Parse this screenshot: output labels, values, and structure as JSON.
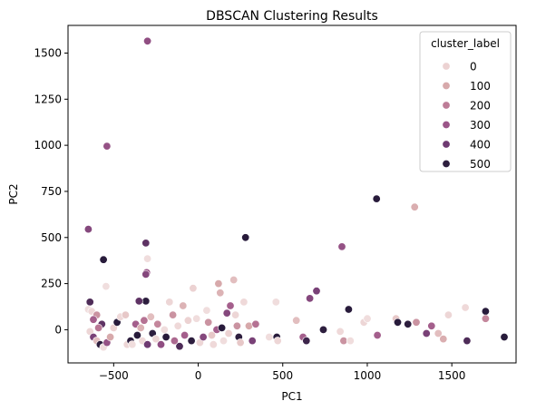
{
  "chart_data": {
    "type": "scatter",
    "title": "DBSCAN Clustering Results",
    "xlabel": "PC1",
    "ylabel": "PC2",
    "xlim": [
      -770,
      1880
    ],
    "ylim": [
      -180,
      1650
    ],
    "xticks": [
      -500,
      0,
      500,
      1000,
      1500
    ],
    "yticks": [
      0,
      250,
      500,
      750,
      1000,
      1250,
      1500
    ],
    "grid": false,
    "legend": {
      "title": "cluster_label",
      "placement": "top-right",
      "entries": [
        {
          "label": "0",
          "color": "#ecd2d2"
        },
        {
          "label": "100",
          "color": "#d7a9ab"
        },
        {
          "label": "200",
          "color": "#bd7c97"
        },
        {
          "label": "300",
          "color": "#9b5588"
        },
        {
          "label": "400",
          "color": "#6e3a71"
        },
        {
          "label": "500",
          "color": "#2d1e3e"
        }
      ]
    },
    "hue_range": [
      0,
      560
    ],
    "color_scale": [
      "#f1e0e0",
      "#ecd2d2",
      "#d7a9ab",
      "#bd7c97",
      "#9b5588",
      "#6e3a71",
      "#2d1e3e",
      "#1a1330"
    ],
    "points": [
      {
        "x": -300,
        "y": 1565,
        "c": 340
      },
      {
        "x": -540,
        "y": 995,
        "c": 330
      },
      {
        "x": -650,
        "y": 545,
        "c": 360
      },
      {
        "x": -560,
        "y": 380,
        "c": 500
      },
      {
        "x": -310,
        "y": 470,
        "c": 420
      },
      {
        "x": -300,
        "y": 385,
        "c": 20
      },
      {
        "x": -305,
        "y": 310,
        "c": 320
      },
      {
        "x": -310,
        "y": 300,
        "c": 360
      },
      {
        "x": -310,
        "y": 155,
        "c": 480
      },
      {
        "x": -350,
        "y": 155,
        "c": 420
      },
      {
        "x": -545,
        "y": 235,
        "c": 10
      },
      {
        "x": -640,
        "y": 150,
        "c": 440
      },
      {
        "x": -650,
        "y": 110,
        "c": 10
      },
      {
        "x": -630,
        "y": 100,
        "c": 40
      },
      {
        "x": -600,
        "y": 80,
        "c": 200
      },
      {
        "x": -620,
        "y": 55,
        "c": 300
      },
      {
        "x": -570,
        "y": 30,
        "c": 420
      },
      {
        "x": -590,
        "y": 10,
        "c": 250
      },
      {
        "x": -640,
        "y": -10,
        "c": 60
      },
      {
        "x": -620,
        "y": -40,
        "c": 380
      },
      {
        "x": -600,
        "y": -60,
        "c": 120
      },
      {
        "x": -580,
        "y": -80,
        "c": 480
      },
      {
        "x": -560,
        "y": -95,
        "c": 20
      },
      {
        "x": -540,
        "y": -70,
        "c": 330
      },
      {
        "x": -520,
        "y": -40,
        "c": 160
      },
      {
        "x": -500,
        "y": 10,
        "c": 80
      },
      {
        "x": -480,
        "y": 40,
        "c": 500
      },
      {
        "x": -460,
        "y": 70,
        "c": 40
      },
      {
        "x": -430,
        "y": 80,
        "c": 100
      },
      {
        "x": -420,
        "y": -80,
        "c": 60
      },
      {
        "x": -400,
        "y": -60,
        "c": 480
      },
      {
        "x": -390,
        "y": -80,
        "c": 20
      },
      {
        "x": -370,
        "y": 30,
        "c": 300
      },
      {
        "x": -360,
        "y": -30,
        "c": 500
      },
      {
        "x": -340,
        "y": 10,
        "c": 140
      },
      {
        "x": -330,
        "y": -60,
        "c": 40
      },
      {
        "x": -320,
        "y": 50,
        "c": 260
      },
      {
        "x": -300,
        "y": -80,
        "c": 400
      },
      {
        "x": -280,
        "y": 70,
        "c": 120
      },
      {
        "x": -270,
        "y": -20,
        "c": 480
      },
      {
        "x": -250,
        "y": -50,
        "c": 60
      },
      {
        "x": -240,
        "y": 30,
        "c": 220
      },
      {
        "x": -220,
        "y": -80,
        "c": 340
      },
      {
        "x": -200,
        "y": 0,
        "c": 20
      },
      {
        "x": -190,
        "y": -40,
        "c": 500
      },
      {
        "x": -170,
        "y": 150,
        "c": 60
      },
      {
        "x": -150,
        "y": 80,
        "c": 200
      },
      {
        "x": -140,
        "y": -60,
        "c": 280
      },
      {
        "x": -120,
        "y": 20,
        "c": 40
      },
      {
        "x": -110,
        "y": -90,
        "c": 440
      },
      {
        "x": -90,
        "y": 130,
        "c": 140
      },
      {
        "x": -80,
        "y": -30,
        "c": 300
      },
      {
        "x": -60,
        "y": 50,
        "c": 80
      },
      {
        "x": -40,
        "y": -60,
        "c": 480
      },
      {
        "x": -30,
        "y": 225,
        "c": 80
      },
      {
        "x": -10,
        "y": 60,
        "c": 20
      },
      {
        "x": 10,
        "y": -70,
        "c": 60
      },
      {
        "x": 30,
        "y": -40,
        "c": 360
      },
      {
        "x": 50,
        "y": 105,
        "c": 20
      },
      {
        "x": 60,
        "y": 40,
        "c": 200
      },
      {
        "x": 80,
        "y": -30,
        "c": 100
      },
      {
        "x": 90,
        "y": -80,
        "c": 40
      },
      {
        "x": 110,
        "y": 0,
        "c": 300
      },
      {
        "x": 120,
        "y": 250,
        "c": 160
      },
      {
        "x": 130,
        "y": 200,
        "c": 140
      },
      {
        "x": 140,
        "y": 10,
        "c": 500
      },
      {
        "x": 150,
        "y": -60,
        "c": 20
      },
      {
        "x": 170,
        "y": 90,
        "c": 360
      },
      {
        "x": 180,
        "y": -20,
        "c": 80
      },
      {
        "x": 190,
        "y": 130,
        "c": 300
      },
      {
        "x": 210,
        "y": 270,
        "c": 120
      },
      {
        "x": 220,
        "y": 80,
        "c": 60
      },
      {
        "x": 230,
        "y": 20,
        "c": 200
      },
      {
        "x": 240,
        "y": -40,
        "c": 480
      },
      {
        "x": 250,
        "y": -70,
        "c": 100
      },
      {
        "x": 270,
        "y": 150,
        "c": 40
      },
      {
        "x": 280,
        "y": 500,
        "c": 500
      },
      {
        "x": 300,
        "y": 20,
        "c": 160
      },
      {
        "x": 320,
        "y": -60,
        "c": 380
      },
      {
        "x": 340,
        "y": 30,
        "c": 260
      },
      {
        "x": 420,
        "y": -40,
        "c": 20
      },
      {
        "x": 460,
        "y": 150,
        "c": 20
      },
      {
        "x": 465,
        "y": -40,
        "c": 500
      },
      {
        "x": 470,
        "y": -60,
        "c": 60
      },
      {
        "x": 580,
        "y": 50,
        "c": 120
      },
      {
        "x": 620,
        "y": -40,
        "c": 300
      },
      {
        "x": 640,
        "y": -60,
        "c": 460
      },
      {
        "x": 660,
        "y": 170,
        "c": 360
      },
      {
        "x": 700,
        "y": 210,
        "c": 380
      },
      {
        "x": 740,
        "y": 0,
        "c": 480
      },
      {
        "x": 850,
        "y": 450,
        "c": 330
      },
      {
        "x": 840,
        "y": -10,
        "c": 40
      },
      {
        "x": 860,
        "y": -60,
        "c": 200
      },
      {
        "x": 890,
        "y": 110,
        "c": 500
      },
      {
        "x": 900,
        "y": -60,
        "c": 20
      },
      {
        "x": 980,
        "y": 40,
        "c": 60
      },
      {
        "x": 1000,
        "y": 60,
        "c": 20
      },
      {
        "x": 1055,
        "y": 710,
        "c": 500
      },
      {
        "x": 1060,
        "y": -30,
        "c": 300
      },
      {
        "x": 1170,
        "y": 60,
        "c": 100
      },
      {
        "x": 1180,
        "y": 40,
        "c": 500
      },
      {
        "x": 1240,
        "y": 30,
        "c": 480
      },
      {
        "x": 1280,
        "y": 665,
        "c": 150
      },
      {
        "x": 1290,
        "y": 40,
        "c": 200
      },
      {
        "x": 1350,
        "y": -20,
        "c": 380
      },
      {
        "x": 1380,
        "y": 20,
        "c": 300
      },
      {
        "x": 1420,
        "y": -20,
        "c": 120
      },
      {
        "x": 1450,
        "y": -50,
        "c": 150
      },
      {
        "x": 1480,
        "y": 80,
        "c": 60
      },
      {
        "x": 1580,
        "y": 120,
        "c": 40
      },
      {
        "x": 1590,
        "y": -60,
        "c": 440
      },
      {
        "x": 1700,
        "y": 100,
        "c": 500
      },
      {
        "x": 1700,
        "y": 60,
        "c": 220
      },
      {
        "x": 1810,
        "y": -40,
        "c": 500
      }
    ]
  }
}
